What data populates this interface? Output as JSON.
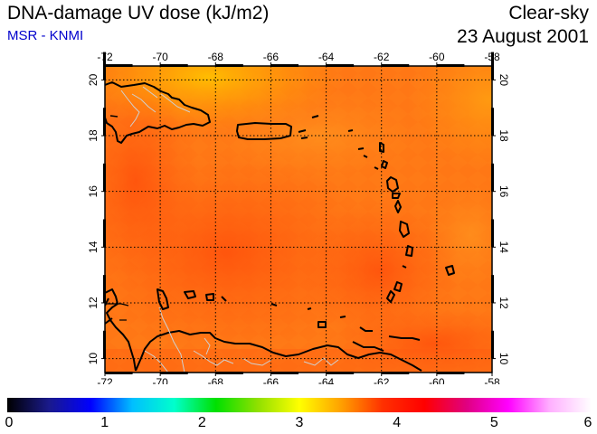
{
  "header": {
    "title": "DNA-damage UV dose (kJ/m2)",
    "subtitle": "MSR - KNMI",
    "sky_condition": "Clear-sky",
    "date": "23 August 2001"
  },
  "colors": {
    "subtitle": "#0000cc",
    "field_orange": "#ff7a14",
    "field_red_orange": "#ff5a10",
    "field_yellow": "#ffb400",
    "coastline": "#000000",
    "borders": "#c8c8c8",
    "grid": "#000000"
  },
  "map": {
    "projection": "lat-lon",
    "lon_range": [
      -72,
      -58
    ],
    "lat_range": [
      9.5,
      20.5
    ],
    "top_ticks": [
      "-72",
      "-70",
      "-68",
      "-66",
      "-64",
      "-62",
      "-60",
      "-58"
    ],
    "bottom_ticks": [
      "-72",
      "-70",
      "-68",
      "-66",
      "-64",
      "-62",
      "-60",
      "-58"
    ],
    "left_ticks": [
      "20",
      "18",
      "16",
      "14",
      "12",
      "10"
    ],
    "right_ticks": [
      "20",
      "18",
      "16",
      "14",
      "12",
      "10"
    ],
    "grid": "dotted"
  },
  "colorbar": {
    "min": 0,
    "max": 6,
    "labels": [
      "0",
      "1",
      "2",
      "3",
      "4",
      "5",
      "6"
    ],
    "stops": [
      "#000000",
      "#1a1a8c",
      "#0000ff",
      "#00bfff",
      "#00ffcc",
      "#00e000",
      "#90e000",
      "#ffff00",
      "#ffa000",
      "#ff3000",
      "#ff0000",
      "#e00080",
      "#ff00ff",
      "#ffb0ff",
      "#ffffff"
    ]
  }
}
